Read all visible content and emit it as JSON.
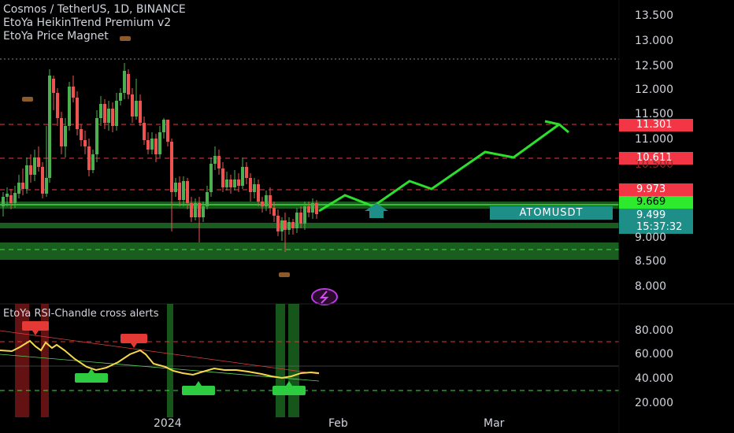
{
  "header": {
    "title": "Cosmos / TetherUS, 1D, BINANCE",
    "indicator_1": "EtoYa HeikinTrend Premium v2",
    "indicator_2": "EtoYa Price Magnet"
  },
  "rsi_panel": {
    "title": "EtoYa RSI-Chandle cross alerts",
    "levels": [
      "80.000",
      "60.000",
      "40.000",
      "20.000"
    ]
  },
  "price_axis": {
    "labels": [
      "13.500",
      "13.000",
      "12.500",
      "12.000",
      "11.500",
      "11.000",
      "10.500",
      "9.000",
      "8.500",
      "8.000"
    ]
  },
  "price_tags": {
    "r1": "11.301",
    "r2": "10.611",
    "r3": "9.973",
    "s1": "9.669",
    "current": "9.499",
    "countdown": "15:37:32"
  },
  "symbol_tag": "ATOMUSDT",
  "time_axis": {
    "labels": [
      "2024",
      "Feb",
      "Mar"
    ]
  },
  "colors": {
    "bull": "#4caf50",
    "bear": "#ef5350",
    "forecast": "#2ddf2d",
    "resistance": "#f23645",
    "support": "#1f8a2a",
    "rsi_line": "#f5d94a",
    "teal": "#1e8f88"
  },
  "icons": {
    "alert_badge": "lightning-icon",
    "signal_arrow": "up-arrow-icon"
  }
}
